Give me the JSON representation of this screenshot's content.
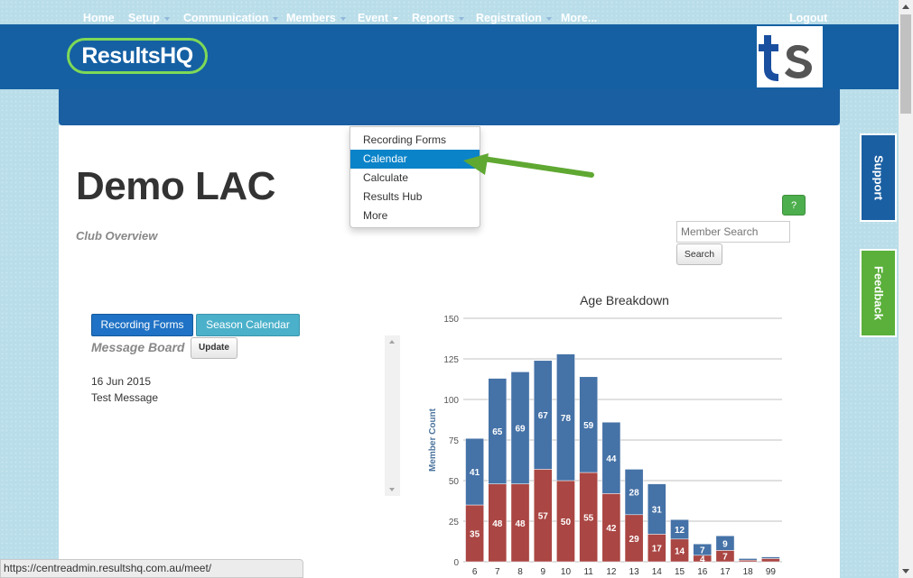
{
  "header": {
    "logo_text": "Results",
    "logo_text_hq": "HQ",
    "partner_logo": "ts",
    "colors": {
      "brand": "#1560a3",
      "logo_ring": "#7ed957"
    }
  },
  "nav": {
    "items": [
      {
        "label": "Home",
        "has_caret": false
      },
      {
        "label": "Setup",
        "has_caret": true
      },
      {
        "label": "Communication",
        "has_caret": true
      },
      {
        "label": "Members",
        "has_caret": true
      },
      {
        "label": "Event",
        "has_caret": true
      },
      {
        "label": "Reports",
        "has_caret": true
      },
      {
        "label": "Registration",
        "has_caret": true
      },
      {
        "label": "More...",
        "has_caret": false
      }
    ],
    "logout": "Logout"
  },
  "event_dropdown": {
    "items": [
      "Recording Forms",
      "Calendar",
      "Calculate",
      "Results Hub",
      "More"
    ],
    "active": "Calendar"
  },
  "page": {
    "title": "Demo LAC",
    "subtitle": "Club Overview",
    "help_label": "?",
    "search": {
      "placeholder": "Member Search",
      "button": "Search"
    }
  },
  "actions": {
    "recording_forms": "Recording Forms",
    "season_calendar": "Season Calendar"
  },
  "message_board": {
    "title": "Message Board",
    "update_label": "Update",
    "messages": [
      {
        "date": "16 Jun 2015",
        "text": "Test Message"
      }
    ]
  },
  "side_tabs": {
    "support": "Support",
    "feedback": "Feedback"
  },
  "status_bar": {
    "url": "https://centreadmin.resultshq.com.au/meet/"
  },
  "chart_data": {
    "type": "bar",
    "stacked": true,
    "title": "Age Breakdown",
    "ylabel": "Member Count",
    "xlabel": "",
    "ylim": [
      0,
      150
    ],
    "yticks": [
      0,
      25,
      50,
      75,
      100,
      125,
      150
    ],
    "categories": [
      "6",
      "7",
      "8",
      "9",
      "10",
      "11",
      "12",
      "13",
      "14",
      "15",
      "16",
      "17",
      "18",
      "99"
    ],
    "series": [
      {
        "color": "#aa4643",
        "values": [
          35,
          48,
          48,
          57,
          50,
          55,
          42,
          29,
          17,
          14,
          4,
          7,
          1,
          2
        ],
        "labels": [
          "35",
          "48",
          "48",
          "57",
          "50",
          "55",
          "42",
          "29",
          "17",
          "14",
          "4",
          "7",
          "",
          ""
        ]
      },
      {
        "color": "#4572a7",
        "values": [
          41,
          65,
          69,
          67,
          78,
          59,
          44,
          28,
          31,
          12,
          7,
          9,
          1,
          1
        ],
        "labels": [
          "41",
          "65",
          "69",
          "67",
          "78",
          "59",
          "44",
          "28",
          "31",
          "12",
          "7",
          "9",
          "",
          ""
        ]
      }
    ],
    "grid": true,
    "legend": "none"
  }
}
